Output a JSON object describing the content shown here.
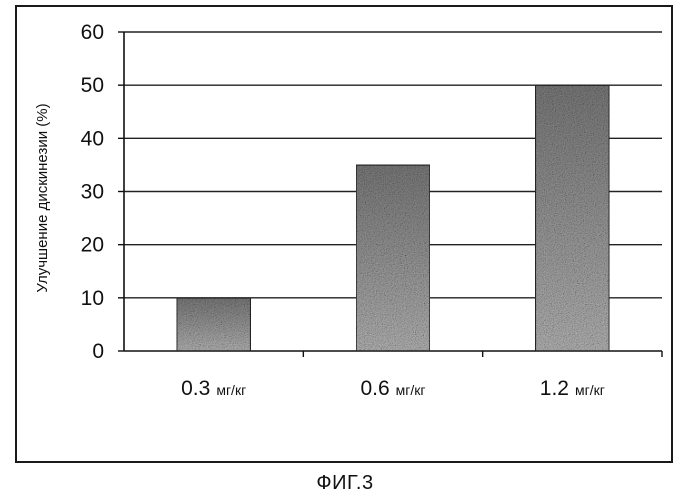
{
  "chart_data": {
    "type": "bar",
    "categories": [
      {
        "number": "0.3",
        "unit": "мг/кг"
      },
      {
        "number": "0.6",
        "unit": "мг/кг"
      },
      {
        "number": "1.2",
        "unit": "мг/кг"
      }
    ],
    "values": [
      10,
      35,
      50
    ],
    "ylabel": "Улучшение дискинезии (%)",
    "xlabel": "",
    "ylim": [
      0,
      60
    ],
    "yticks": [
      0,
      10,
      20,
      30,
      40,
      50,
      60
    ],
    "grid": true,
    "legend": "none",
    "bar_color": "#9a9a9a",
    "bar_edge_color": "#2a2a2a",
    "grid_color": "#222222"
  },
  "figure_caption": "ФИГ.3"
}
